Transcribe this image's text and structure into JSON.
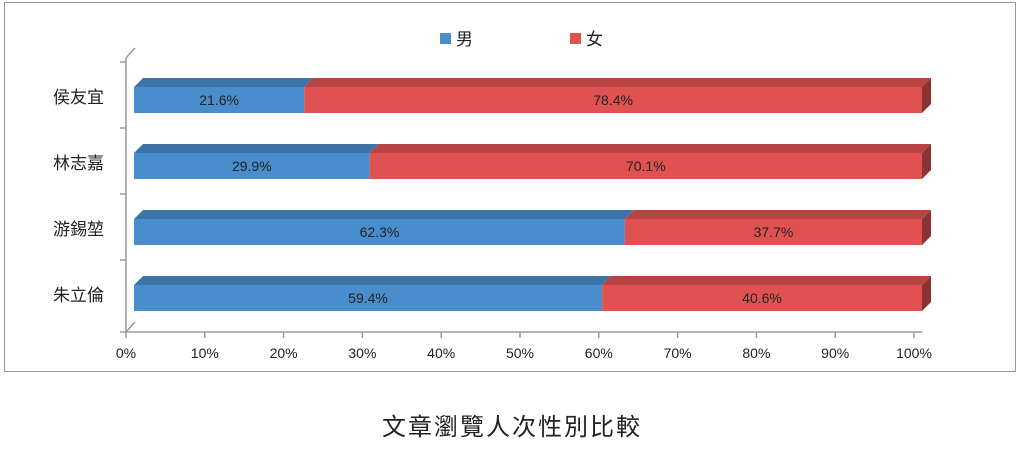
{
  "caption": "文章瀏覽人次性別比較",
  "chart_data": {
    "type": "bar",
    "orientation": "horizontal",
    "stacked": "percent",
    "categories": [
      "侯友宜",
      "林志嘉",
      "游錫堃",
      "朱立倫"
    ],
    "series": [
      {
        "name": "男",
        "values": [
          21.6,
          29.9,
          62.3,
          59.4
        ],
        "labels": [
          "21.6%",
          "29.9%",
          "62.3%",
          "59.4%"
        ],
        "color": "#4a8dcc"
      },
      {
        "name": "女",
        "values": [
          78.4,
          70.1,
          37.7,
          40.6
        ],
        "labels": [
          "78.4%",
          "70.1%",
          "37.7%",
          "40.6%"
        ],
        "color": "#e05252"
      }
    ],
    "xlim": [
      0,
      100
    ],
    "xticks": [
      "0%",
      "10%",
      "20%",
      "30%",
      "40%",
      "50%",
      "60%",
      "70%",
      "80%",
      "90%",
      "100%"
    ],
    "legend_position": "top",
    "grid": false
  }
}
